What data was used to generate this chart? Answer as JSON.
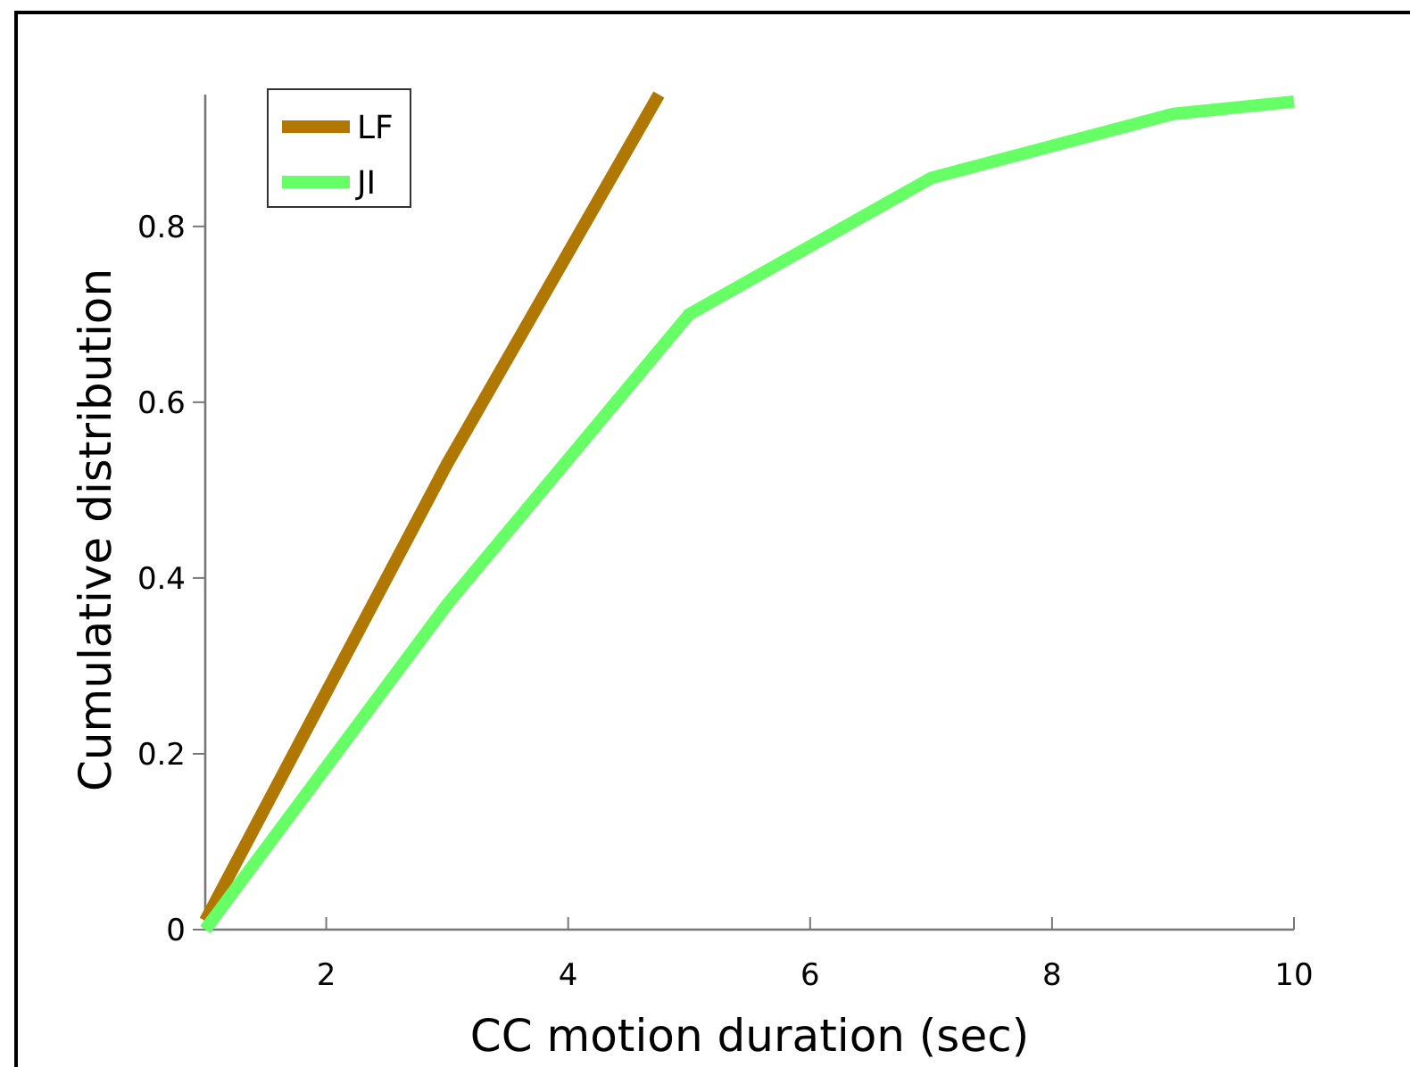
{
  "chart_data": {
    "type": "line",
    "xlabel": "CC motion duration (sec)",
    "ylabel": "Cumulative distribution",
    "xlim": [
      1,
      10
    ],
    "xticks": [
      2,
      4,
      6,
      8,
      10
    ],
    "ylim": [
      0,
      0.95
    ],
    "yticks": [
      0,
      0.2,
      0.4,
      0.6,
      0.8
    ],
    "legend": "top left",
    "grid": false,
    "marker": "none",
    "line_style": "solid",
    "series": [
      {
        "name": "LF",
        "color": "#b07800",
        "x": [
          1,
          3,
          4.75
        ],
        "values": [
          0.01,
          0.53,
          0.95
        ]
      },
      {
        "name": "JI",
        "color": "#66ff66",
        "x": [
          1,
          3,
          5,
          7,
          9,
          10
        ],
        "values": [
          0,
          0.37,
          0.7,
          0.855,
          0.928,
          0.942
        ]
      }
    ]
  }
}
